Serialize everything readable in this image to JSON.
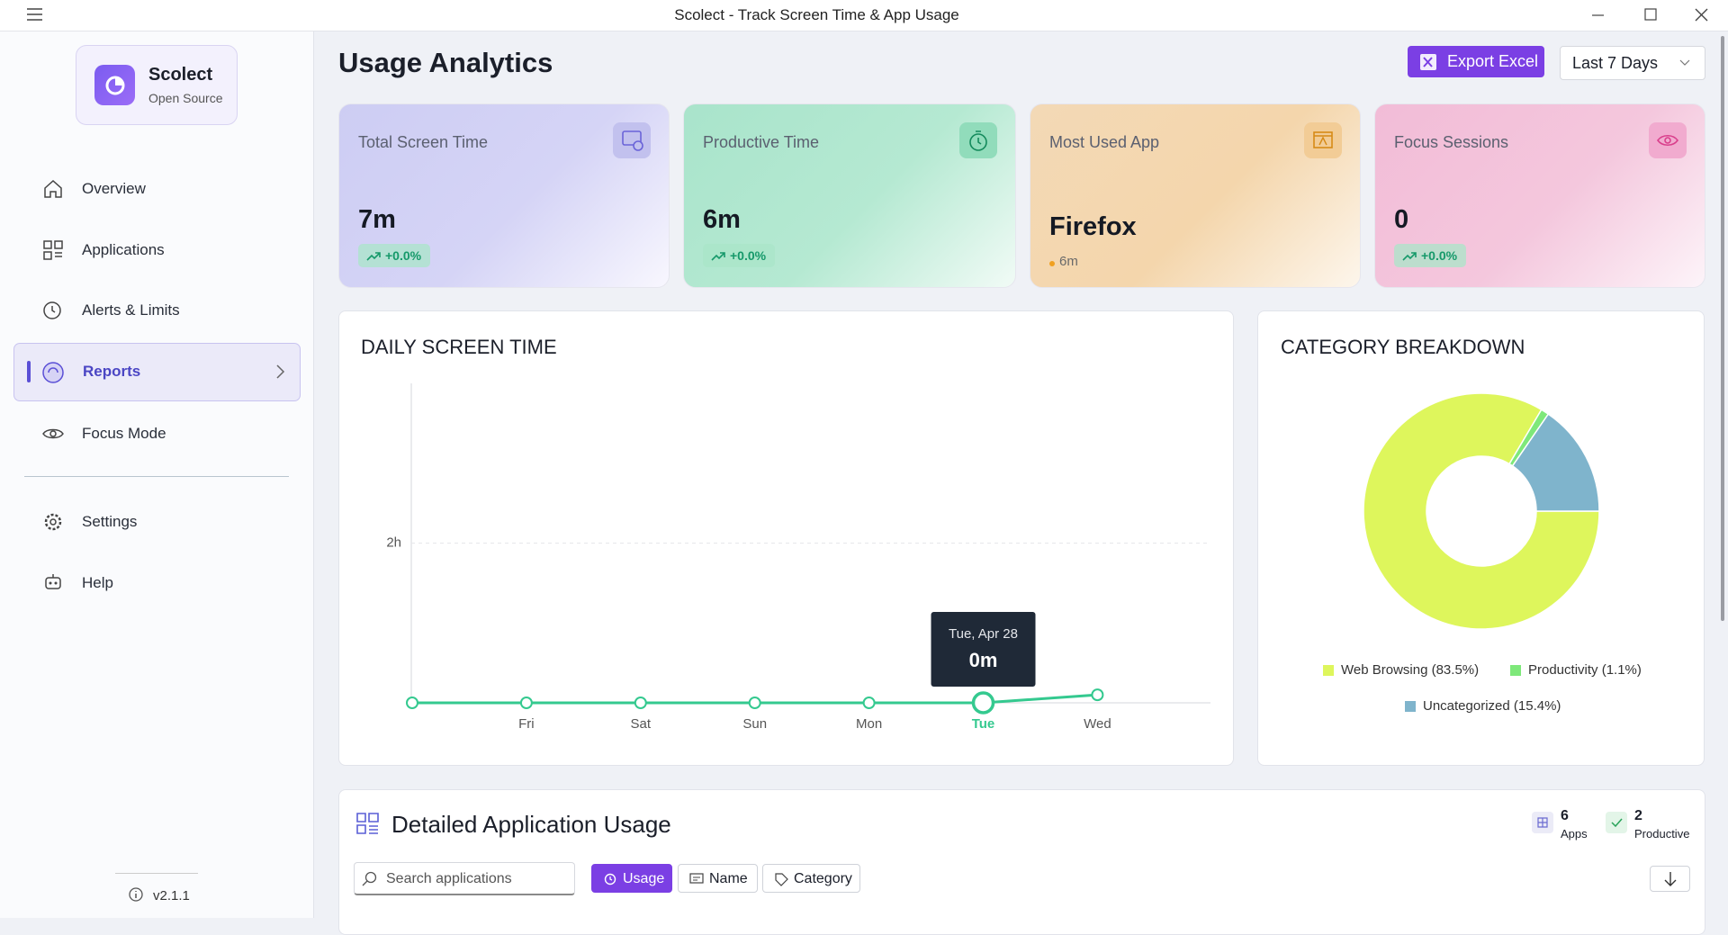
{
  "window": {
    "title": "Scolect - Track Screen Time & App Usage"
  },
  "sidebar": {
    "app_name": "Scolect",
    "app_subtitle": "Open Source",
    "nav": [
      "Overview",
      "Applications",
      "Alerts & Limits",
      "Reports",
      "Focus Mode"
    ],
    "nav_bottom": [
      "Settings",
      "Help"
    ],
    "version": "v2.1.1"
  },
  "header": {
    "title": "Usage Analytics",
    "export_button": "Export Excel",
    "range": "Last 7 Days"
  },
  "stats": [
    {
      "label": "Total Screen Time",
      "value": "7m",
      "change": "+0.0%"
    },
    {
      "label": "Productive Time",
      "value": "6m",
      "change": "+0.0%"
    },
    {
      "label": "Most Used App",
      "value": "Firefox",
      "detail": "6m"
    },
    {
      "label": "Focus Sessions",
      "value": "0",
      "change": "+0.0%"
    }
  ],
  "daily_chart": {
    "type": "line",
    "title": "DAILY SCREEN TIME",
    "categories": [
      null,
      "Fri",
      "Sat",
      "Sun",
      "Mon",
      "Tue",
      "Wed"
    ],
    "values": [
      0,
      0,
      0,
      0,
      0,
      0,
      0.1
    ],
    "ylim": [
      0,
      4
    ],
    "yticks": [
      {
        "value": 2,
        "label": "2h"
      }
    ],
    "grid": true,
    "color": "#34c98f",
    "tooltip": {
      "index": 5,
      "title": "Tue, Apr 28",
      "value": "0m"
    }
  },
  "category_chart": {
    "type": "donut",
    "title": "CATEGORY BREAKDOWN",
    "categories": [
      "Web Browsing (83.5%)",
      "Productivity (1.1%)",
      "Uncategorized (15.4%)"
    ],
    "values": [
      83.5,
      1.1,
      15.4
    ],
    "colors": [
      "#def65c",
      "#7ee87a",
      "#7fb4cc"
    ]
  },
  "applications": {
    "title": "Detailed Application Usage",
    "apps_count": "6",
    "apps_label": "Apps",
    "productive_count": "2",
    "productive_label": "Productive",
    "search_placeholder": "Search applications",
    "sort_buttons": [
      "Usage",
      "Name",
      "Category"
    ]
  }
}
